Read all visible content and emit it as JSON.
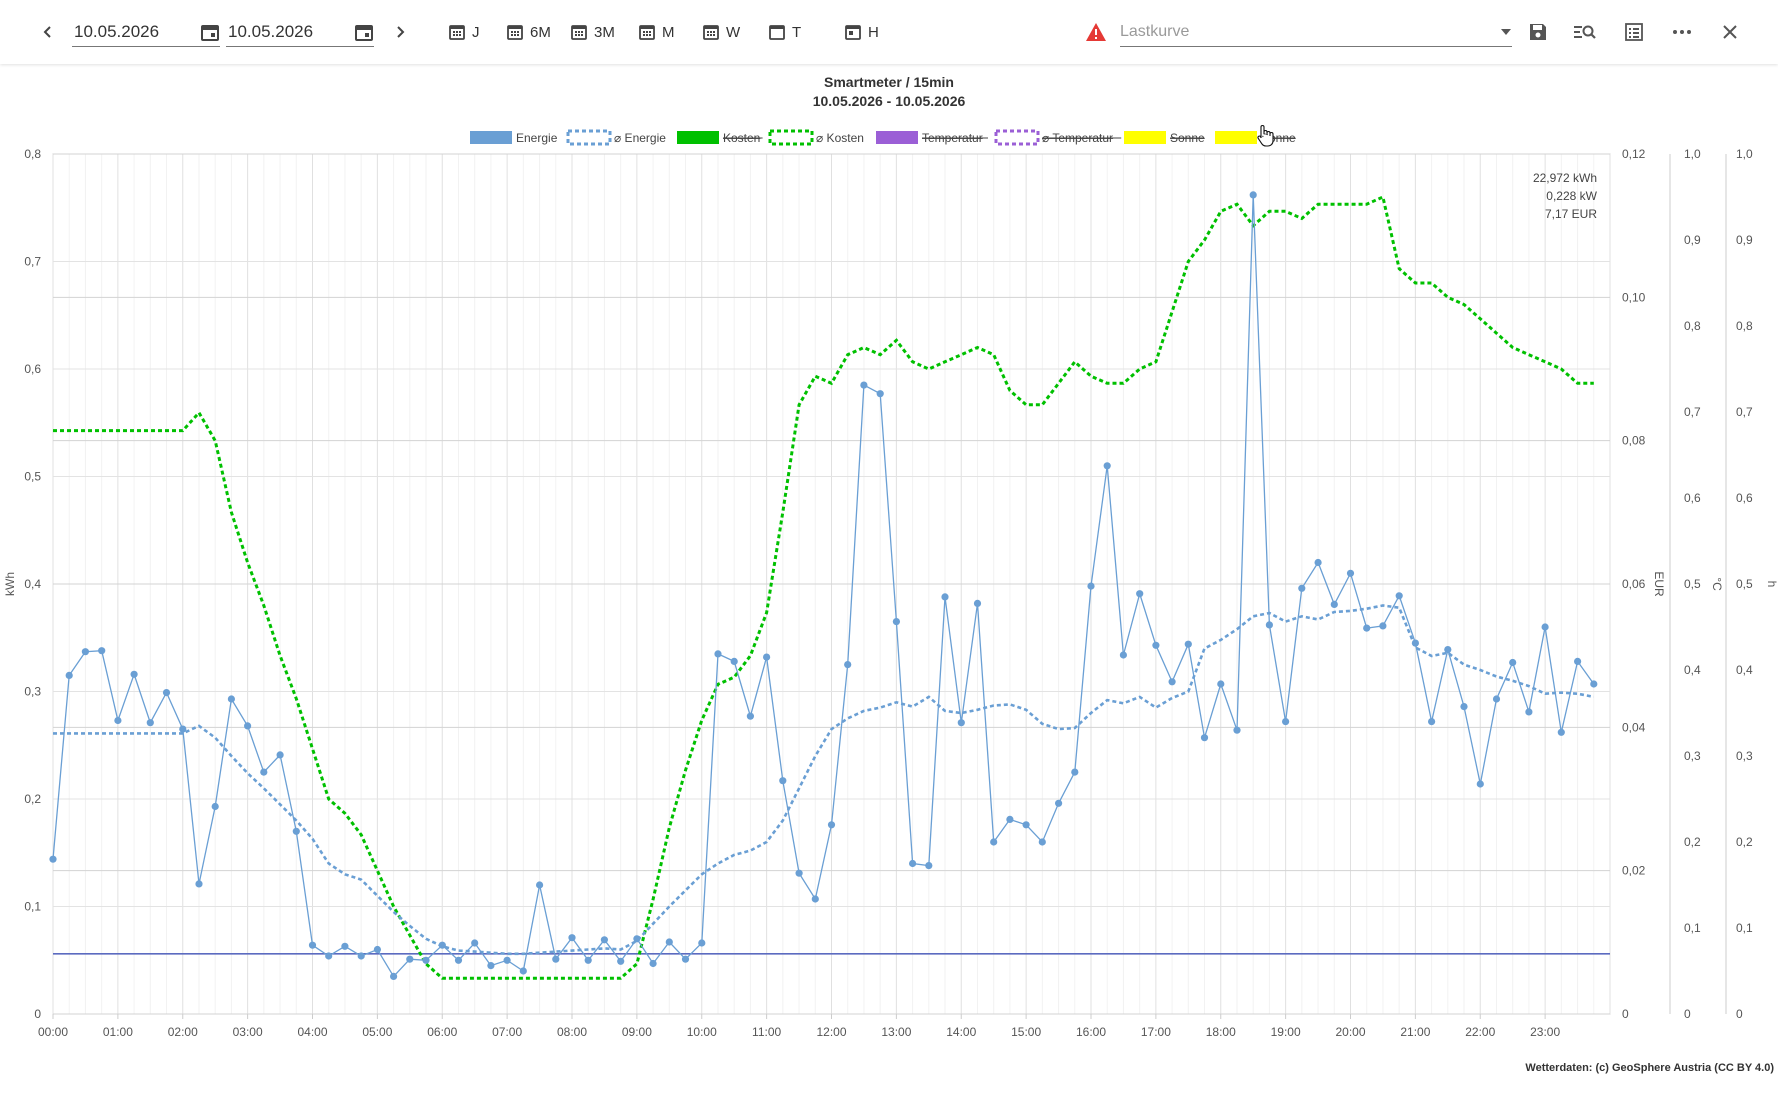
{
  "toolbar": {
    "prev_icon": "chevron-left-icon",
    "next_icon": "chevron-right-icon",
    "date_from": "10.05.2026",
    "date_to": "10.05.2026",
    "ranges": [
      "J",
      "6M",
      "3M",
      "M",
      "W",
      "T",
      "H"
    ],
    "select_placeholder": "Lastkurve",
    "warning_color": "#e53935"
  },
  "chart_data": {
    "type": "line",
    "title": "Smartmeter  / 15min",
    "subtitle": "10.05.2026 - 10.05.2026",
    "legend": [
      {
        "name": "Energie",
        "color": "#6a9fd4",
        "style": "solid",
        "hidden": false
      },
      {
        "name": "⌀ Energie",
        "color": "#6a9fd4",
        "style": "dashed",
        "hidden": false
      },
      {
        "name": "Kosten",
        "color": "#00c000",
        "style": "solid",
        "hidden": true
      },
      {
        "name": "⌀ Kosten",
        "color": "#00c000",
        "style": "dashed",
        "hidden": false
      },
      {
        "name": "Temperatur",
        "color": "#9b5fd6",
        "style": "solid",
        "hidden": true
      },
      {
        "name": "⌀ Temperatur",
        "color": "#9b5fd6",
        "style": "dashed",
        "hidden": true
      },
      {
        "name": "Sonne",
        "color": "#ffff00",
        "style": "solid",
        "hidden": true
      },
      {
        "name": "Sonne",
        "color": "#ffff00",
        "style": "solid",
        "hidden": true
      }
    ],
    "x_ticks": [
      "00:00",
      "01:00",
      "02:00",
      "03:00",
      "04:00",
      "05:00",
      "06:00",
      "07:00",
      "08:00",
      "09:00",
      "10:00",
      "11:00",
      "12:00",
      "13:00",
      "14:00",
      "15:00",
      "16:00",
      "17:00",
      "18:00",
      "19:00",
      "20:00",
      "21:00",
      "22:00",
      "23:00"
    ],
    "xlim": [
      0,
      24
    ],
    "y_left": {
      "label": "kWh",
      "range": [
        0,
        0.8
      ],
      "ticks": [
        "0",
        "0,1",
        "0,2",
        "0,3",
        "0,4",
        "0,5",
        "0,6",
        "0,7",
        "0,8"
      ]
    },
    "y_eur": {
      "label": "EUR",
      "range": [
        0,
        0.12
      ],
      "ticks": [
        "0",
        "0,02",
        "0,04",
        "0,06",
        "0,08",
        "0,10",
        "0,12"
      ]
    },
    "y_temp": {
      "label": "°C",
      "range": [
        0,
        1
      ],
      "ticks": [
        "0",
        "0,1",
        "0,2",
        "0,3",
        "0,4",
        "0,5",
        "0,6",
        "0,7",
        "0,8",
        "0,9",
        "1,0"
      ]
    },
    "y_sun": {
      "label": "h",
      "range": [
        0,
        1
      ],
      "ticks": [
        "0",
        "0,1",
        "0,2",
        "0,3",
        "0,4",
        "0,5",
        "0,6",
        "0,7",
        "0,8",
        "0,9",
        "1,0"
      ]
    },
    "summary": [
      "22,972 kWh",
      "0,228 kW",
      "7,17 EUR"
    ],
    "baseline": {
      "value": 0.056,
      "color": "#5c6bc0"
    },
    "energy": [
      0.144,
      0.315,
      0.337,
      0.338,
      0.273,
      0.316,
      0.271,
      0.299,
      0.265,
      0.121,
      0.193,
      0.293,
      0.268,
      0.225,
      0.241,
      0.17,
      0.064,
      0.054,
      0.063,
      0.054,
      0.06,
      0.035,
      0.051,
      0.05,
      0.064,
      0.05,
      0.066,
      0.045,
      0.05,
      0.04,
      0.12,
      0.051,
      0.071,
      0.05,
      0.069,
      0.049,
      0.07,
      0.047,
      0.067,
      0.051,
      0.066,
      0.335,
      0.328,
      0.277,
      0.332,
      0.217,
      0.131,
      0.107,
      0.176,
      0.325,
      0.585,
      0.577,
      0.365,
      0.14,
      0.138,
      0.388,
      0.271,
      0.382,
      0.16,
      0.181,
      0.176,
      0.16,
      0.196,
      0.225,
      0.398,
      0.51,
      0.334,
      0.391,
      0.343,
      0.309,
      0.344,
      0.257,
      0.307,
      0.264,
      0.762,
      0.362,
      0.272,
      0.396,
      0.42,
      0.381,
      0.41,
      0.359,
      0.361,
      0.389,
      0.345,
      0.272,
      0.339,
      0.286,
      0.214,
      0.293,
      0.327,
      0.281,
      0.36,
      0.262,
      0.328,
      0.307
    ],
    "energy_avg": [
      0.261,
      0.261,
      0.261,
      0.261,
      0.261,
      0.261,
      0.261,
      0.261,
      0.261,
      0.268,
      0.257,
      0.24,
      0.224,
      0.21,
      0.195,
      0.18,
      0.163,
      0.14,
      0.13,
      0.125,
      0.11,
      0.095,
      0.082,
      0.07,
      0.063,
      0.059,
      0.058,
      0.057,
      0.056,
      0.056,
      0.057,
      0.058,
      0.059,
      0.06,
      0.061,
      0.06,
      0.068,
      0.084,
      0.1,
      0.115,
      0.13,
      0.14,
      0.148,
      0.152,
      0.16,
      0.18,
      0.21,
      0.24,
      0.265,
      0.275,
      0.282,
      0.285,
      0.29,
      0.286,
      0.295,
      0.282,
      0.28,
      0.283,
      0.287,
      0.288,
      0.283,
      0.27,
      0.265,
      0.266,
      0.28,
      0.292,
      0.289,
      0.295,
      0.285,
      0.294,
      0.3,
      0.34,
      0.348,
      0.358,
      0.37,
      0.373,
      0.365,
      0.37,
      0.367,
      0.374,
      0.375,
      0.377,
      0.38,
      0.378,
      0.341,
      0.333,
      0.336,
      0.325,
      0.32,
      0.314,
      0.31,
      0.305,
      0.298,
      0.299,
      0.298,
      0.295
    ],
    "cost_avg": [
      0.0814,
      0.0814,
      0.0814,
      0.0814,
      0.0814,
      0.0814,
      0.0814,
      0.0814,
      0.0814,
      0.0839,
      0.08,
      0.07,
      0.063,
      0.057,
      0.05,
      0.044,
      0.037,
      0.03,
      0.028,
      0.025,
      0.02,
      0.015,
      0.011,
      0.007,
      0.005,
      0.005,
      0.005,
      0.005,
      0.005,
      0.005,
      0.005,
      0.005,
      0.005,
      0.005,
      0.005,
      0.005,
      0.007,
      0.016,
      0.026,
      0.034,
      0.041,
      0.046,
      0.047,
      0.05,
      0.056,
      0.07,
      0.085,
      0.089,
      0.088,
      0.092,
      0.093,
      0.092,
      0.094,
      0.091,
      0.09,
      0.091,
      0.092,
      0.093,
      0.092,
      0.087,
      0.085,
      0.085,
      0.088,
      0.091,
      0.089,
      0.088,
      0.088,
      0.09,
      0.091,
      0.098,
      0.105,
      0.108,
      0.112,
      0.113,
      0.11,
      0.112,
      0.112,
      0.111,
      0.113,
      0.113,
      0.113,
      0.113,
      0.114,
      0.104,
      0.102,
      0.102,
      0.1,
      0.099,
      0.097,
      0.095,
      0.093,
      0.092,
      0.091,
      0.09,
      0.088,
      0.088
    ],
    "line_colors": {
      "energy": "#6a9fd4",
      "cost": "#00c000"
    }
  },
  "footer": "Wetterdaten: (c) GeoSphere Austria (CC BY 4.0)"
}
